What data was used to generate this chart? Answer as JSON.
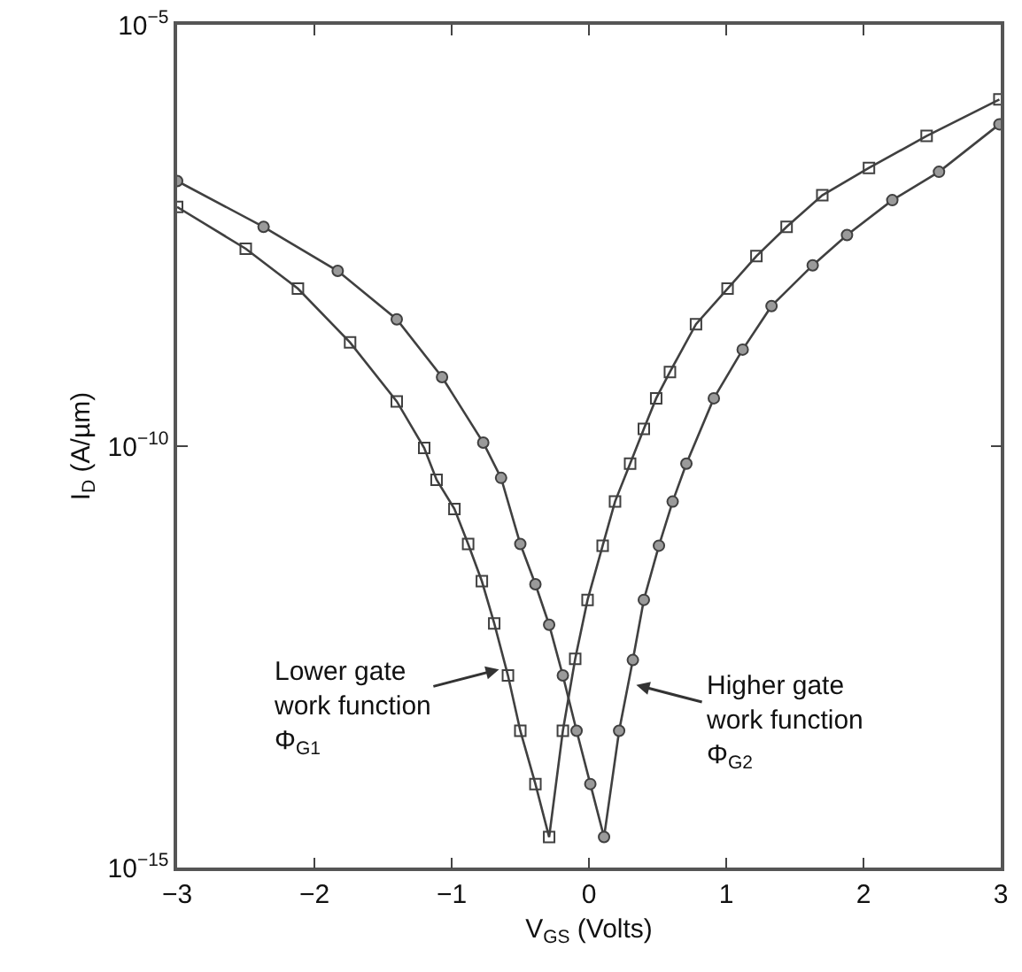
{
  "chart_data": {
    "type": "line",
    "xlabel": "V$_{GS}$ (Volts)",
    "ylabel": "I$_{D}$ (A/µm)",
    "log": "y",
    "xlim": [
      -3,
      3
    ],
    "xticks": [
      {
        "value": -3,
        "label": "−3"
      },
      {
        "value": -2,
        "label": "−2"
      },
      {
        "value": -1,
        "label": "−1"
      },
      0,
      1,
      2,
      3
    ],
    "ylim": [
      1e-15,
      1e-05
    ],
    "yticks": [
      {
        "value": 1e-15,
        "label": "10$^{−15}$"
      },
      {
        "value": 1e-10,
        "label": "10$^{−10}$"
      },
      {
        "value": 1e-05,
        "label": "10$^{−5}$"
      }
    ],
    "grid": false,
    "line_style": "solid",
    "series": [
      {
        "color": "#404040",
        "marker": "square",
        "x": [
          -3,
          -2.5,
          -2.12,
          -1.74,
          -1.4,
          -1.2,
          -1.11,
          -0.98,
          -0.88,
          -0.78,
          -0.69,
          -0.59,
          -0.5,
          -0.39,
          -0.29,
          -0.19,
          -0.1,
          -0.01,
          0.1,
          0.19,
          0.3,
          0.4,
          0.49,
          0.59,
          0.78,
          1.01,
          1.22,
          1.44,
          1.7,
          2.04,
          2.46,
          2.99
        ],
        "values": [
          6.9e-08,
          2.2e-08,
          7.4e-09,
          1.7e-09,
          3.4e-10,
          9.5e-11,
          4e-11,
          1.8e-11,
          6.9e-12,
          2.5e-12,
          7.9e-13,
          1.9e-13,
          4.2e-14,
          9.8e-15,
          2.3e-15,
          4.2e-14,
          3e-13,
          1.5e-12,
          6.6e-12,
          2.2e-11,
          6.2e-11,
          1.6e-10,
          3.7e-10,
          7.6e-10,
          2.8e-09,
          7.4e-09,
          1.8e-08,
          4e-08,
          9.5e-08,
          2e-07,
          4.8e-07,
          1.3e-06
        ]
      },
      {
        "color": "#404040",
        "marker": "circle",
        "x": [
          -3,
          -2.37,
          -1.83,
          -1.4,
          -1.07,
          -0.77,
          -0.64,
          -0.5,
          -0.39,
          -0.29,
          -0.19,
          -0.09,
          0.01,
          0.11,
          0.22,
          0.32,
          0.4,
          0.51,
          0.61,
          0.71,
          0.91,
          1.12,
          1.33,
          1.63,
          1.88,
          2.21,
          2.55,
          2.99
        ],
        "values": [
          1.4e-07,
          4e-08,
          1.2e-08,
          3.2e-09,
          6.6e-10,
          1.1e-10,
          4.2e-11,
          6.9e-12,
          2.3e-12,
          7.6e-13,
          1.9e-13,
          4.2e-14,
          9.8e-15,
          2.3e-15,
          4.2e-14,
          2.9e-13,
          1.5e-12,
          6.6e-12,
          2.2e-11,
          6.2e-11,
          3.7e-10,
          1.4e-09,
          4.6e-09,
          1.4e-08,
          3.2e-08,
          8.3e-08,
          1.8e-07,
          6.6e-07
        ]
      }
    ],
    "annotations": [
      {
        "text": "Lower gate\nwork function\nΦ$_{G1}$",
        "x": -0.63,
        "y": 2.3e-13
      },
      {
        "text": "Higher gate\nwork function\nΦ$_{G2}$",
        "x": 0.32,
        "y": 1.5e-13
      }
    ]
  }
}
